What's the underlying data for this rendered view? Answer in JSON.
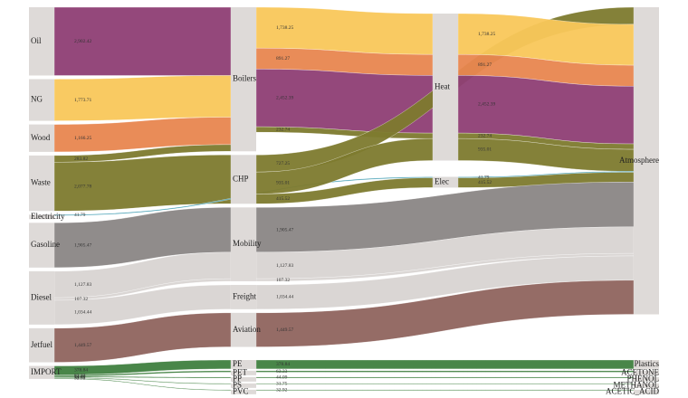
{
  "chart_data": {
    "type": "sankey",
    "nodes": [
      "Oil",
      "NG",
      "Wood",
      "Waste",
      "Electricity",
      "Gasoline",
      "Diesel",
      "Jetfuel",
      "IMPORT",
      "Boilers",
      "CHP",
      "Mobility",
      "Freight",
      "Aviation",
      "PE",
      "PET",
      "PP",
      "PS",
      "PVC",
      "Heat",
      "Elec",
      "Atmosphere",
      "Plastics",
      "ACETONE",
      "PHENOL",
      "METHANOL",
      "ACETIC_ACID"
    ],
    "links": [
      {
        "source": 0,
        "target": 9,
        "value": 2902.42,
        "label": "2,902.42",
        "color": "#8e3e74"
      },
      {
        "source": 1,
        "target": 9,
        "value": 1773.71,
        "label": "1,773.71",
        "color": "#f9c75a"
      },
      {
        "source": 2,
        "target": 9,
        "value": 1166.25,
        "label": "1,166.25",
        "color": "#e8864f"
      },
      {
        "source": 3,
        "target": 9,
        "value": 283.82,
        "label": "283.82",
        "color": "#7d7a2e"
      },
      {
        "source": 3,
        "target": 10,
        "value": 2077.78,
        "label": "2,077.78",
        "color": "#7d7a2e"
      },
      {
        "source": 4,
        "target": 20,
        "value": 41.79,
        "label": "41.79",
        "color": "#3a9ab0"
      },
      {
        "source": 5,
        "target": 11,
        "value": 1905.47,
        "label": "1,905.47",
        "color": "#8a8685"
      },
      {
        "source": 6,
        "target": 11,
        "value": 1127.83,
        "label": "1,127.83",
        "color": "#d8d4d2"
      },
      {
        "source": 6,
        "target": 11,
        "value": 107.32,
        "label": "107.32",
        "color": "#d8d4d2"
      },
      {
        "source": 6,
        "target": 12,
        "value": 1034.44,
        "label": "1,034.44",
        "color": "#d8d4d2"
      },
      {
        "source": 7,
        "target": 13,
        "value": 1449.57,
        "label": "1,449.57",
        "color": "#8f645e"
      },
      {
        "source": 8,
        "target": 14,
        "value": 378.84,
        "label": "378.84",
        "color": "#3f7f3f"
      },
      {
        "source": 8,
        "target": 15,
        "value": 63.33,
        "label": "63.33",
        "color": "#3f7f3f"
      },
      {
        "source": 8,
        "target": 16,
        "value": 44.09,
        "label": "44.09",
        "color": "#3f7f3f"
      },
      {
        "source": 8,
        "target": 17,
        "value": 31.75,
        "label": "31.75",
        "color": "#3f7f3f"
      },
      {
        "source": 8,
        "target": 18,
        "value": 32.92,
        "label": "32.92",
        "color": "#3f7f3f"
      },
      {
        "source": 9,
        "target": 19,
        "value": 1738.25,
        "label": "1,738.25",
        "color": "#f9c75a"
      },
      {
        "source": 9,
        "target": 19,
        "value": 891.27,
        "label": "891.27",
        "color": "#e8864f"
      },
      {
        "source": 9,
        "target": 19,
        "value": 2452.39,
        "label": "2,452.39",
        "color": "#8e3e74"
      },
      {
        "source": 9,
        "target": 19,
        "value": 232.74,
        "label": "232.74",
        "color": "#7d7a2e"
      },
      {
        "source": 10,
        "target": 21,
        "value": 727.25,
        "label": "727.25",
        "color": "#7d7a2e"
      },
      {
        "source": 10,
        "target": 19,
        "value": 935.01,
        "label": "935.01",
        "color": "#7d7a2e"
      },
      {
        "source": 10,
        "target": 20,
        "value": 415.52,
        "label": "415.52",
        "color": "#7d7a2e"
      },
      {
        "source": 19,
        "target": 21,
        "value": 1738.25,
        "label": "1,738.25",
        "color": "#f9c75a"
      },
      {
        "source": 19,
        "target": 21,
        "value": 891.27,
        "label": "891.27",
        "color": "#e8864f"
      },
      {
        "source": 19,
        "target": 21,
        "value": 2452.39,
        "label": "2,452.39",
        "color": "#8e3e74"
      },
      {
        "source": 19,
        "target": 21,
        "value": 232.74,
        "label": "232.74",
        "color": "#7d7a2e"
      },
      {
        "source": 19,
        "target": 21,
        "value": 935.01,
        "label": "935.01",
        "color": "#7d7a2e"
      },
      {
        "source": 20,
        "target": 21,
        "value": 41.79,
        "label": "41.79",
        "color": "#3a9ab0"
      },
      {
        "source": 20,
        "target": 21,
        "value": 415.52,
        "label": "415.52",
        "color": "#7d7a2e"
      },
      {
        "source": 11,
        "target": 21,
        "value": 1905.47,
        "label": "1,905.47",
        "color": "#8a8685"
      },
      {
        "source": 11,
        "target": 21,
        "value": 1127.83,
        "label": "1,127.83",
        "color": "#d8d4d2"
      },
      {
        "source": 11,
        "target": 21,
        "value": 107.32,
        "label": "107.32",
        "color": "#d8d4d2"
      },
      {
        "source": 12,
        "target": 21,
        "value": 1034.44,
        "label": "1,034.44",
        "color": "#d8d4d2"
      },
      {
        "source": 13,
        "target": 21,
        "value": 1449.57,
        "label": "1,449.57",
        "color": "#8f645e"
      },
      {
        "source": 14,
        "target": 22,
        "value": 378.84,
        "label": "378.84",
        "color": "#3f7f3f"
      },
      {
        "source": 15,
        "target": 23,
        "value": 63.33,
        "label": "63.33",
        "color": "#3f7f3f"
      },
      {
        "source": 16,
        "target": 24,
        "value": 44.09,
        "label": "44.09",
        "color": "#3f7f3f"
      },
      {
        "source": 17,
        "target": 25,
        "value": 31.75,
        "label": "31.75",
        "color": "#3f7f3f"
      },
      {
        "source": 18,
        "target": 26,
        "value": 32.92,
        "label": "32.92",
        "color": "#3f7f3f"
      }
    ]
  }
}
